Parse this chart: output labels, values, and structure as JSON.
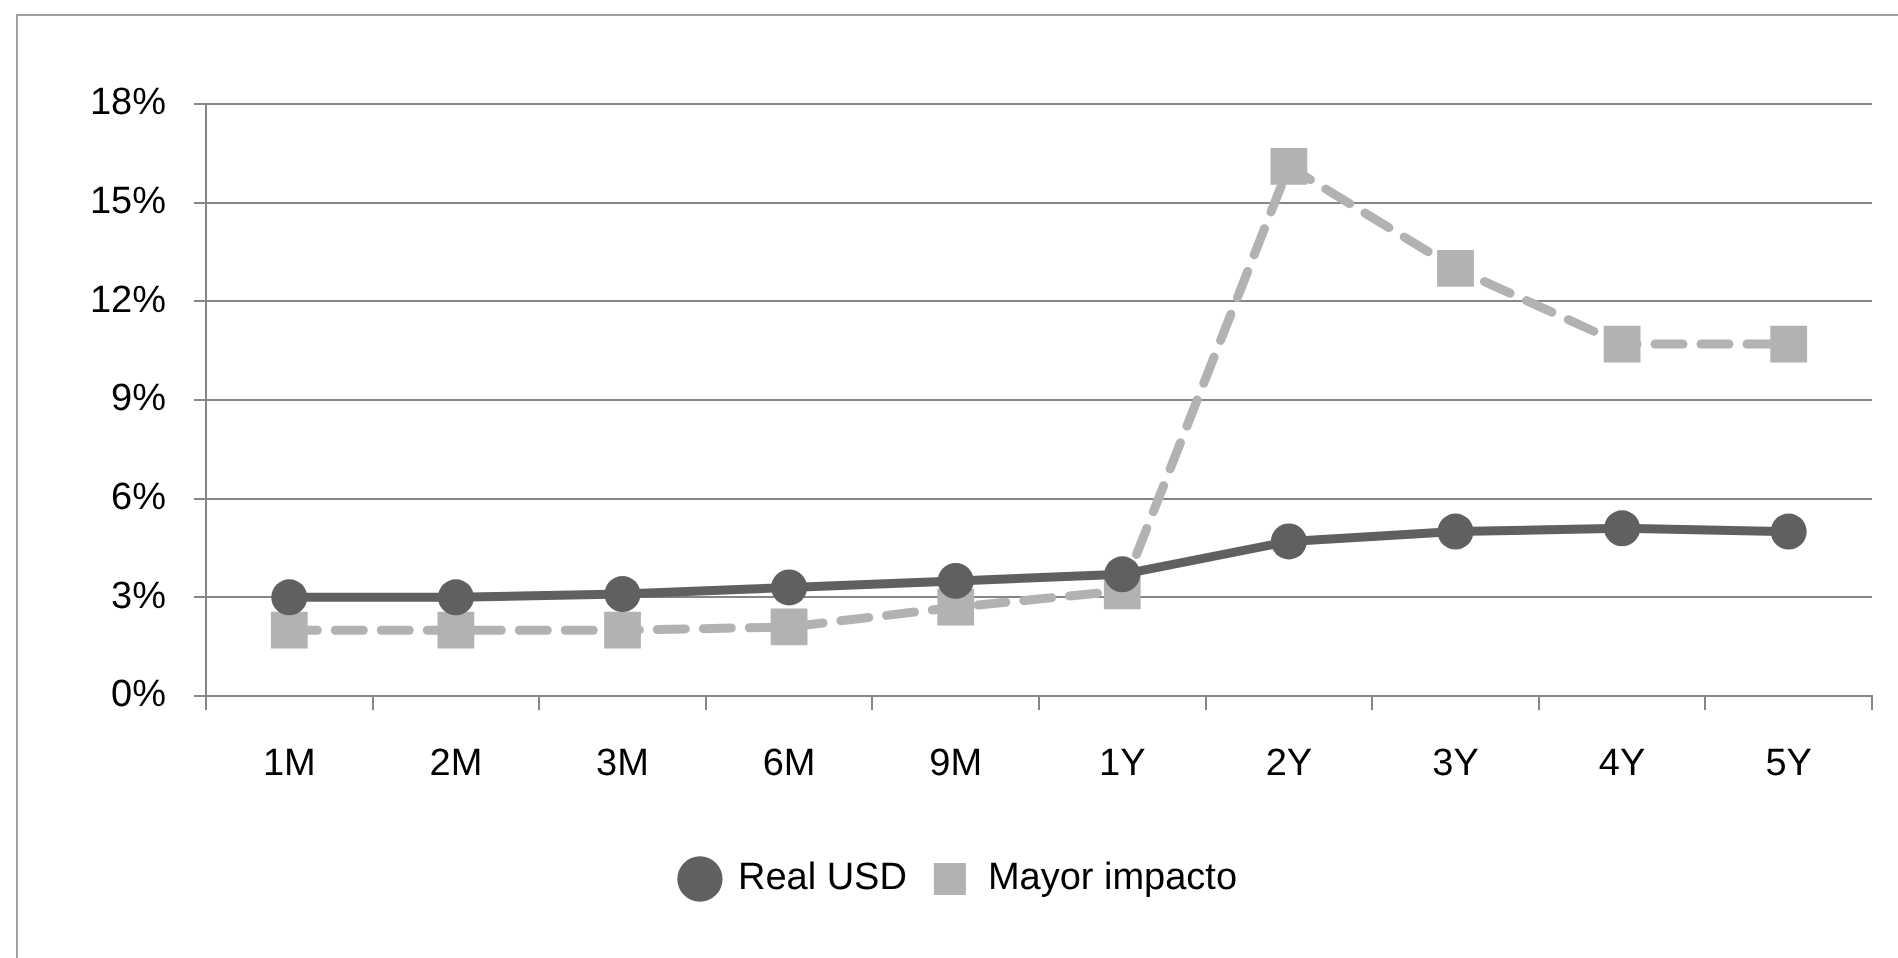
{
  "chart_data": {
    "type": "line",
    "categories": [
      "1M",
      "2M",
      "3M",
      "6M",
      "9M",
      "1Y",
      "2Y",
      "3Y",
      "4Y",
      "5Y"
    ],
    "series": [
      {
        "name": "Real USD",
        "color": "#606060",
        "marker": "circle",
        "line_style": "solid",
        "values": [
          3.0,
          3.0,
          3.1,
          3.3,
          3.5,
          3.7,
          4.7,
          5.0,
          5.1,
          5.0
        ]
      },
      {
        "name": "Mayor impacto",
        "color": "#b2b2b2",
        "marker": "square",
        "line_style": "dashed",
        "values": [
          2.0,
          2.0,
          2.0,
          2.1,
          2.7,
          3.2,
          16.1,
          13.0,
          10.7,
          10.7
        ]
      }
    ],
    "ylim": [
      0,
      18
    ],
    "yticks": [
      {
        "value": 0,
        "label": "0%"
      },
      {
        "value": 3,
        "label": "3%"
      },
      {
        "value": 6,
        "label": "6%"
      },
      {
        "value": 9,
        "label": "9%"
      },
      {
        "value": 12,
        "label": "12%"
      },
      {
        "value": 15,
        "label": "15%"
      },
      {
        "value": 18,
        "label": "18%"
      }
    ],
    "grid": "y",
    "legend": "bottom"
  }
}
